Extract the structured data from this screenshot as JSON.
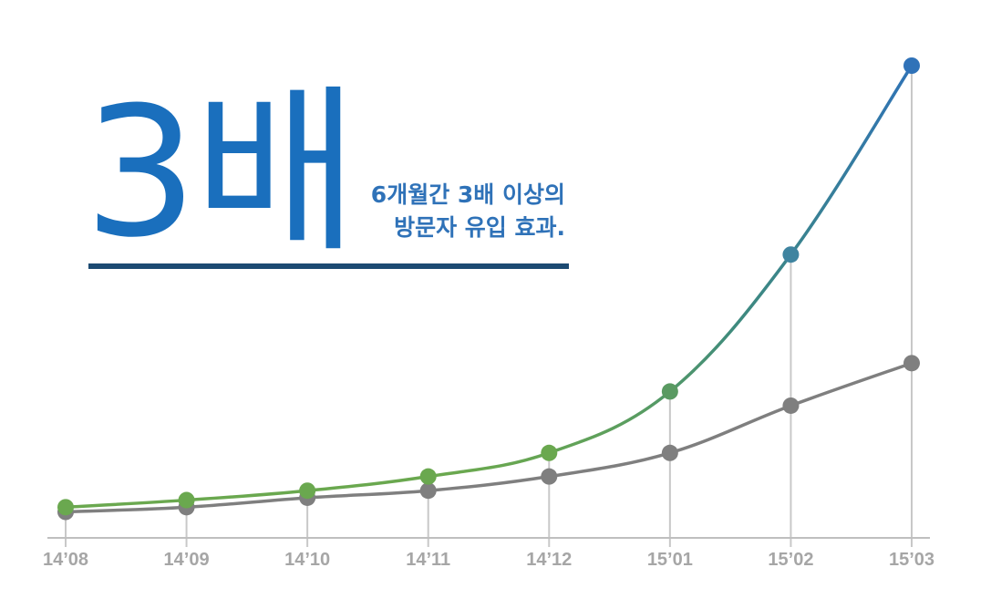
{
  "headline": "3배",
  "subtitle": {
    "line1": "6개월간 3배 이상의",
    "line2": "방문자 유입 효과."
  },
  "colors": {
    "headline": "#1a6fbd",
    "subtitle": "#2f72b8",
    "underline": "#1c4a72",
    "series_green": "#6aa84f",
    "series_blue": "#2f72b8",
    "series_gray": "#7f7f7f",
    "gridline": "#c8c8c8",
    "axis": "#bfbfbf",
    "tick_label": "#a6a6a6"
  },
  "chart_data": {
    "type": "line",
    "categories": [
      "14’08",
      "14’09",
      "14’10",
      "14’11",
      "14’12",
      "15’01",
      "15’02",
      "15’03"
    ],
    "series": [
      {
        "values": [
          6.5,
          8,
          10,
          13,
          18,
          31,
          60,
          100
        ],
        "color_from": "#6aa84f",
        "color_to": "#2f72b8"
      },
      {
        "values": [
          5.5,
          6.5,
          8.5,
          10,
          13,
          18,
          28,
          37
        ],
        "color": "#7f7f7f"
      }
    ],
    "ylim": [
      0,
      100
    ],
    "xlabel": "",
    "ylabel": "",
    "grid": "vertical drop lines at each category",
    "legend": "none"
  }
}
